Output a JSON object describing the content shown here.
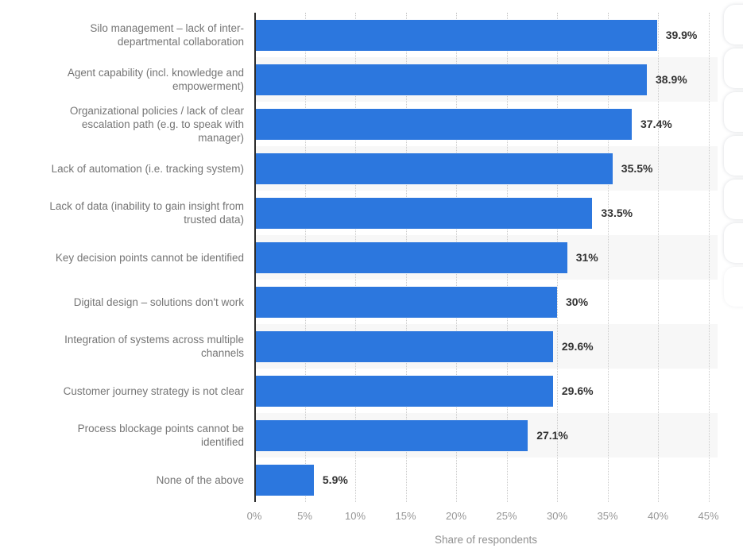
{
  "chart_data": {
    "type": "bar",
    "orientation": "horizontal",
    "title": "",
    "xlabel": "Share of respondents",
    "ylabel": "",
    "xlim": [
      0,
      45
    ],
    "grid": "vertical-dotted",
    "legend": "none",
    "categories": [
      "Silo management – lack of inter-departmental collaboration",
      "Agent capability (incl. knowledge and empowerment)",
      "Organizational policies / lack of clear escalation path (e.g. to speak with manager)",
      "Lack of automation (i.e. tracking system)",
      "Lack of data (inability to gain insight from trusted data)",
      "Key decision points cannot be identified",
      "Digital design – solutions don't work",
      "Integration of systems across multiple channels",
      "Customer journey strategy is not clear",
      "Process blockage points cannot be identified",
      "None of the above"
    ],
    "values": [
      39.9,
      38.9,
      37.4,
      35.5,
      33.5,
      31,
      30,
      29.6,
      29.6,
      27.1,
      5.9
    ],
    "value_labels": [
      "39.9%",
      "38.9%",
      "37.4%",
      "35.5%",
      "33.5%",
      "31%",
      "30%",
      "29.6%",
      "29.6%",
      "27.1%",
      "5.9%"
    ],
    "x_ticks": [
      "0%",
      "5%",
      "10%",
      "15%",
      "20%",
      "25%",
      "30%",
      "35%",
      "40%",
      "45%"
    ],
    "colors": {
      "bar": "#2C77DE",
      "row_stripe": "#F7F7F7",
      "axis_line": "#2B2B2B",
      "gridline": "#CBCBCB",
      "category_text": "#757575",
      "value_text": "#333333",
      "tick_text": "#969696",
      "axis_title_text": "#8F8F8F"
    }
  }
}
